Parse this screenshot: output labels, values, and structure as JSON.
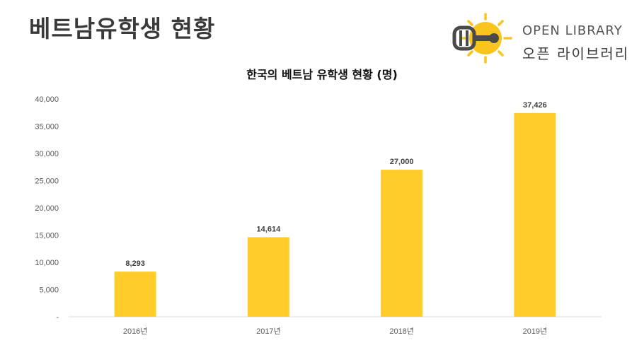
{
  "page": {
    "title": "베트남유학생 현황"
  },
  "logo": {
    "icon": "key-sun-icon",
    "name_en": "OPEN LIBRARY",
    "name_ko": "오픈 라이브러리",
    "accent_color": "#f9c41b",
    "ink_color": "#4a4a4a"
  },
  "chart_data": {
    "type": "bar",
    "title": "한국의 베트남 유학생 현황 (명)",
    "categories": [
      "2016년",
      "2017년",
      "2018년",
      "2019년"
    ],
    "values": [
      8293,
      14614,
      27000,
      37426
    ],
    "value_labels": [
      "8,293",
      "14,614",
      "27,000",
      "37,426"
    ],
    "ylim": [
      0,
      40000
    ],
    "yticks": [
      0,
      5000,
      10000,
      15000,
      20000,
      25000,
      30000,
      35000,
      40000
    ],
    "ytick_labels": [
      "-",
      "5,000",
      "10,000",
      "15,000",
      "20,000",
      "25,000",
      "30,000",
      "35,000",
      "40,000"
    ],
    "xlabel": "",
    "ylabel": "",
    "grid": false,
    "bar_color": "#ffcc29"
  }
}
